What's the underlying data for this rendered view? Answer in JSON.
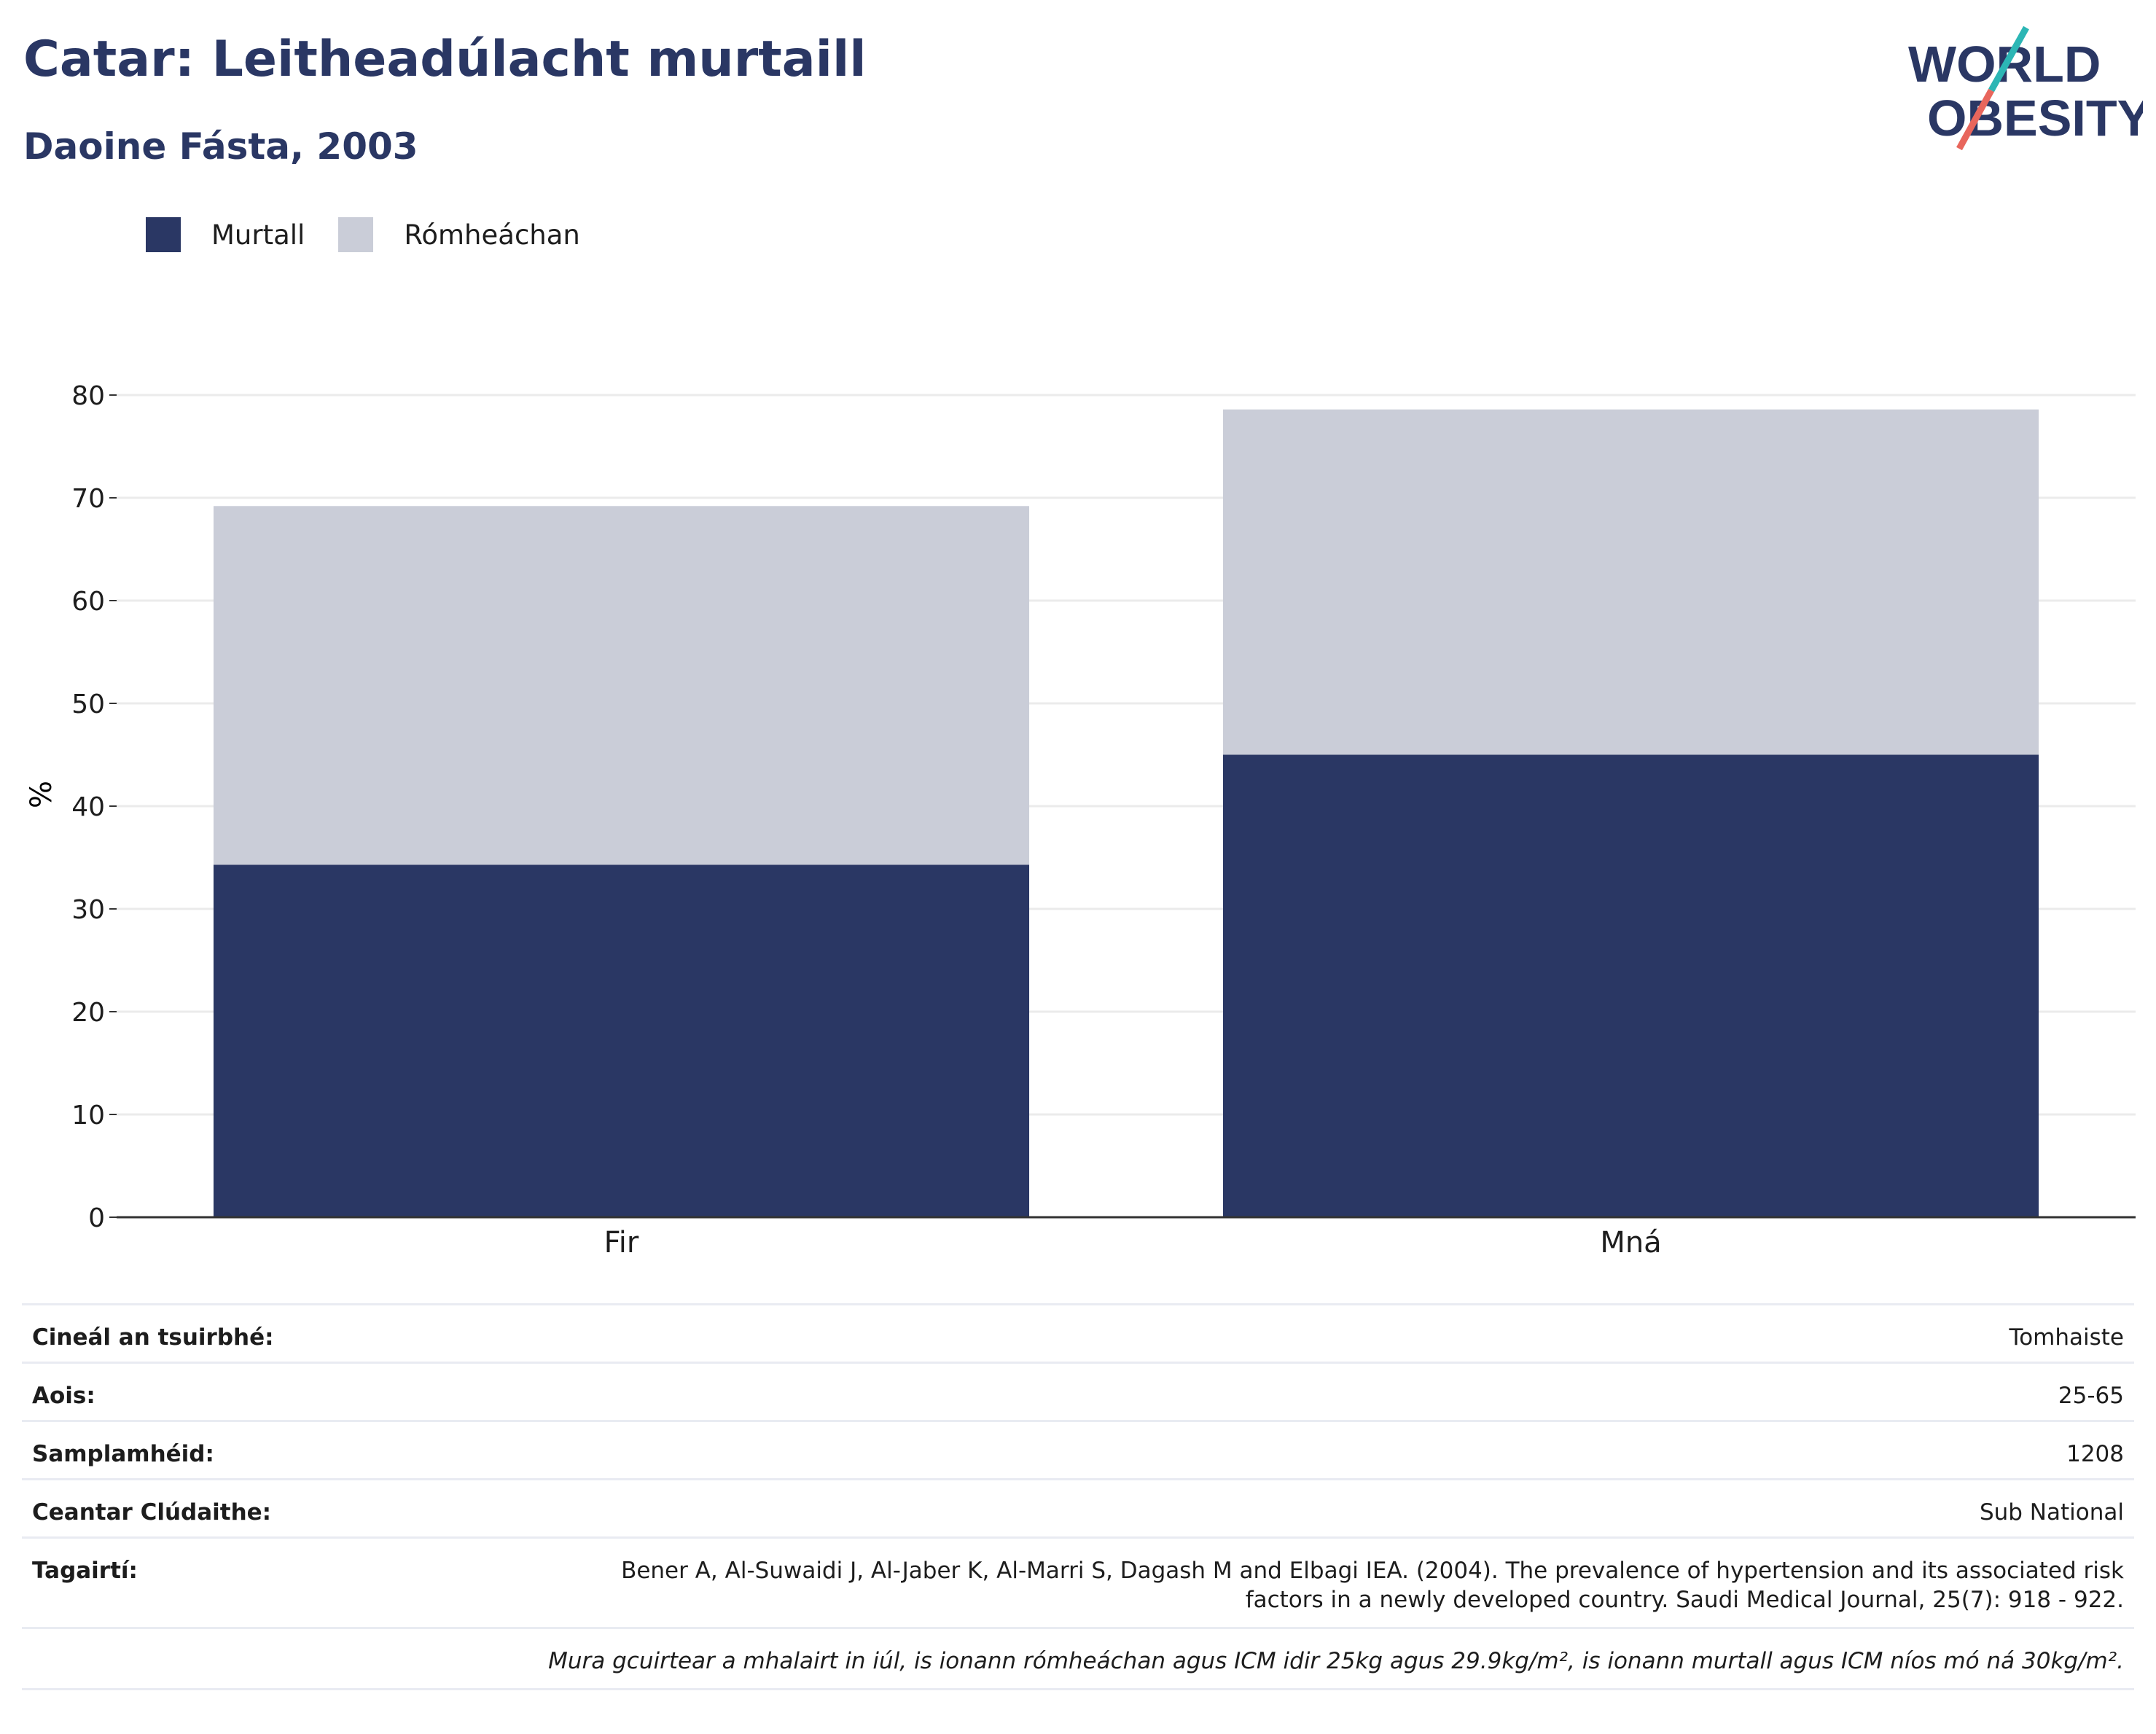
{
  "title": "Catar: Leitheadúlacht murtaill",
  "subtitle": "Daoine Fásta, 2003",
  "logo": {
    "line1": "WORLD",
    "line2": "OBESITY"
  },
  "colors": {
    "obese": "#2a3764",
    "overweight": "#cacdd8",
    "title": "#2a3764",
    "grid": "#ebebeb"
  },
  "legend": [
    {
      "label": "Murtall",
      "color": "#2a3764"
    },
    {
      "label": "Rómheáchan",
      "color": "#cacdd8"
    }
  ],
  "chart_data": {
    "type": "bar",
    "stacked": true,
    "categories": [
      "Fir",
      "Mná"
    ],
    "series": [
      {
        "name": "Murtall",
        "values": [
          34.3,
          45.0
        ]
      },
      {
        "name": "Rómheáchan",
        "values": [
          34.9,
          33.6
        ]
      }
    ],
    "ylabel": "%",
    "ylim": [
      0,
      80
    ],
    "yticks": [
      0,
      10,
      20,
      30,
      40,
      50,
      60,
      70,
      80
    ],
    "grid": true,
    "legend_position": "top-left"
  },
  "info": {
    "rows": [
      {
        "label": "Cineál an tsuirbhé:",
        "value": "Tomhaiste"
      },
      {
        "label": "Aois:",
        "value": "25-65"
      },
      {
        "label": "Samplamhéid:",
        "value": "1208"
      },
      {
        "label": "Ceantar Clúdaithe:",
        "value": "Sub National"
      }
    ],
    "reference_label": "Tagairtí:",
    "reference_line1": "Bener A, Al-Suwaidi J, Al-Jaber K, Al-Marri S, Dagash M and Elbagi IEA. (2004). The prevalence of hypertension and its associated risk",
    "reference_line2": "factors in a newly developed country. Saudi Medical Journal, 25(7): 918 - 922.",
    "note": "Mura gcuirtear a mhalairt in iúl, is ionann rómheáchan agus ICM idir 25kg agus 29.9kg/m², is ionann murtall agus ICM níos mó ná 30kg/m²."
  }
}
